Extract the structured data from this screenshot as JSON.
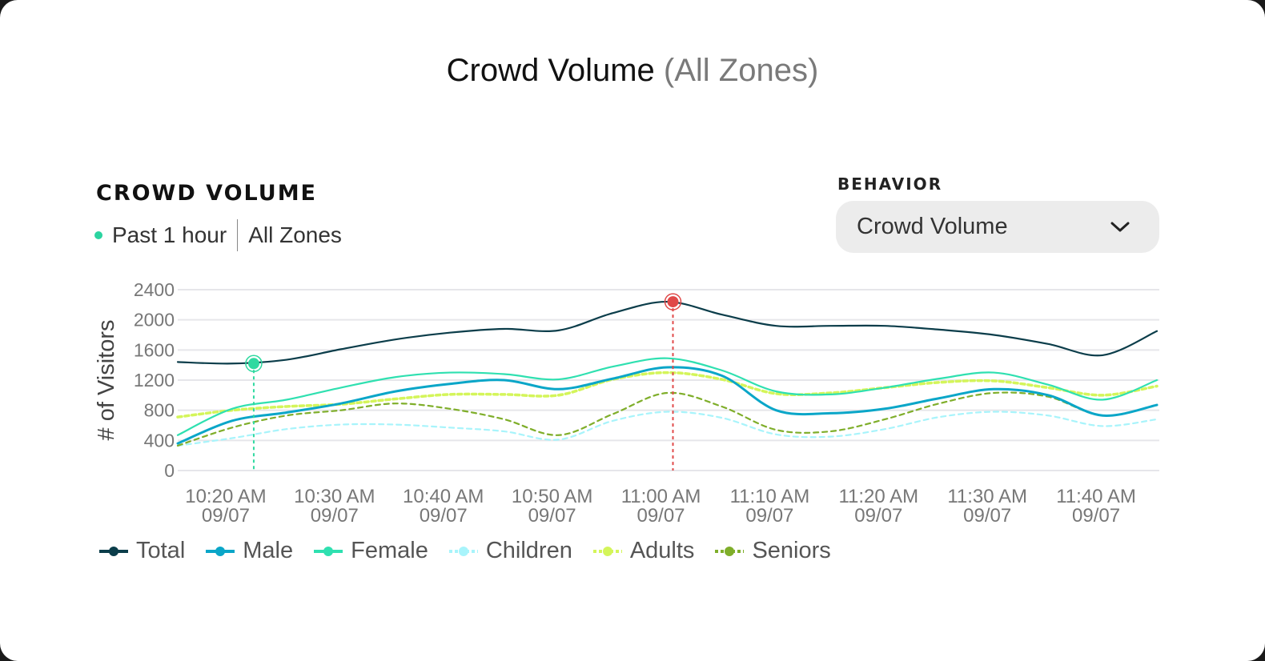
{
  "header": {
    "title": "Crowd Volume",
    "subtitle": "(All Zones)"
  },
  "section": {
    "title": "CROWD VOLUME",
    "period": "Past 1 hour",
    "zone": "All Zones",
    "period_dot_color": "#2bd4a0"
  },
  "behavior": {
    "label": "BEHAVIOR",
    "selected": "Crowd Volume",
    "icon": "chevron-down-icon"
  },
  "chart_data": {
    "type": "line",
    "ylabel": "# of Visitors",
    "ylim": [
      0,
      2400
    ],
    "yticks": [
      "0",
      "400",
      "800",
      "1200",
      "1600",
      "2000",
      "2400"
    ],
    "grid": true,
    "legend_position": "bottom-left",
    "x": [
      "10:15",
      "10:20",
      "10:25",
      "10:30",
      "10:35",
      "10:40",
      "10:45",
      "10:50",
      "10:55",
      "11:00",
      "11:05",
      "11:10",
      "11:15",
      "11:20",
      "11:25",
      "11:30",
      "11:35",
      "11:40",
      "11:45"
    ],
    "xticks": [
      {
        "time": "10:20",
        "label": "10:20 AM",
        "date": "09/07"
      },
      {
        "time": "10:30",
        "label": "10:30 AM",
        "date": "09/07"
      },
      {
        "time": "10:40",
        "label": "10:40 AM",
        "date": "09/07"
      },
      {
        "time": "10:50",
        "label": "10:50 AM",
        "date": "09/07"
      },
      {
        "time": "11:00",
        "label": "11:00 AM",
        "date": "09/07"
      },
      {
        "time": "11:10",
        "label": "11:10 AM",
        "date": "09/07"
      },
      {
        "time": "11:20",
        "label": "11:20 AM",
        "date": "09/07"
      },
      {
        "time": "11:30",
        "label": "11:30 AM",
        "date": "09/07"
      },
      {
        "time": "11:40",
        "label": "11:40 AM",
        "date": "09/07"
      }
    ],
    "series": [
      {
        "name": "Total",
        "color": "#0b3d4a",
        "style": "solid",
        "values": [
          1440,
          1420,
          1470,
          1610,
          1740,
          1830,
          1880,
          1860,
          2090,
          2240,
          2070,
          1920,
          1920,
          1920,
          1870,
          1800,
          1680,
          1530,
          1850
        ]
      },
      {
        "name": "Male",
        "color": "#0aa6c8",
        "style": "solid",
        "values": [
          360,
          660,
          770,
          890,
          1050,
          1150,
          1200,
          1080,
          1220,
          1370,
          1260,
          800,
          760,
          820,
          960,
          1080,
          1000,
          730,
          870
        ]
      },
      {
        "name": "Female",
        "color": "#2fe0b0",
        "style": "solid",
        "values": [
          470,
          820,
          940,
          1100,
          1240,
          1300,
          1280,
          1210,
          1380,
          1490,
          1330,
          1050,
          1010,
          1100,
          1220,
          1300,
          1140,
          940,
          1200
        ]
      },
      {
        "name": "Children",
        "color": "#a8f4fb",
        "style": "dashed",
        "values": [
          330,
          430,
          550,
          610,
          610,
          570,
          520,
          410,
          660,
          780,
          700,
          480,
          450,
          550,
          710,
          780,
          730,
          590,
          680
        ]
      },
      {
        "name": "Adults",
        "color": "#d4f55a",
        "style": "dashed",
        "values": [
          710,
          800,
          850,
          880,
          950,
          1010,
          1010,
          1000,
          1210,
          1300,
          1210,
          1020,
          1030,
          1100,
          1170,
          1190,
          1100,
          1000,
          1120
        ]
      },
      {
        "name": "Seniors",
        "color": "#7fae2a",
        "style": "dashed",
        "values": [
          330,
          570,
          730,
          800,
          890,
          820,
          680,
          470,
          750,
          1030,
          850,
          540,
          520,
          680,
          890,
          1030,
          980,
          730,
          870
        ]
      }
    ],
    "highlights": [
      {
        "time": "10:20",
        "series": "Total",
        "value": 1420,
        "color": "#2fd9a0"
      },
      {
        "time": "11:00",
        "series": "Total",
        "value": 2240,
        "color": "#e04848"
      }
    ]
  }
}
